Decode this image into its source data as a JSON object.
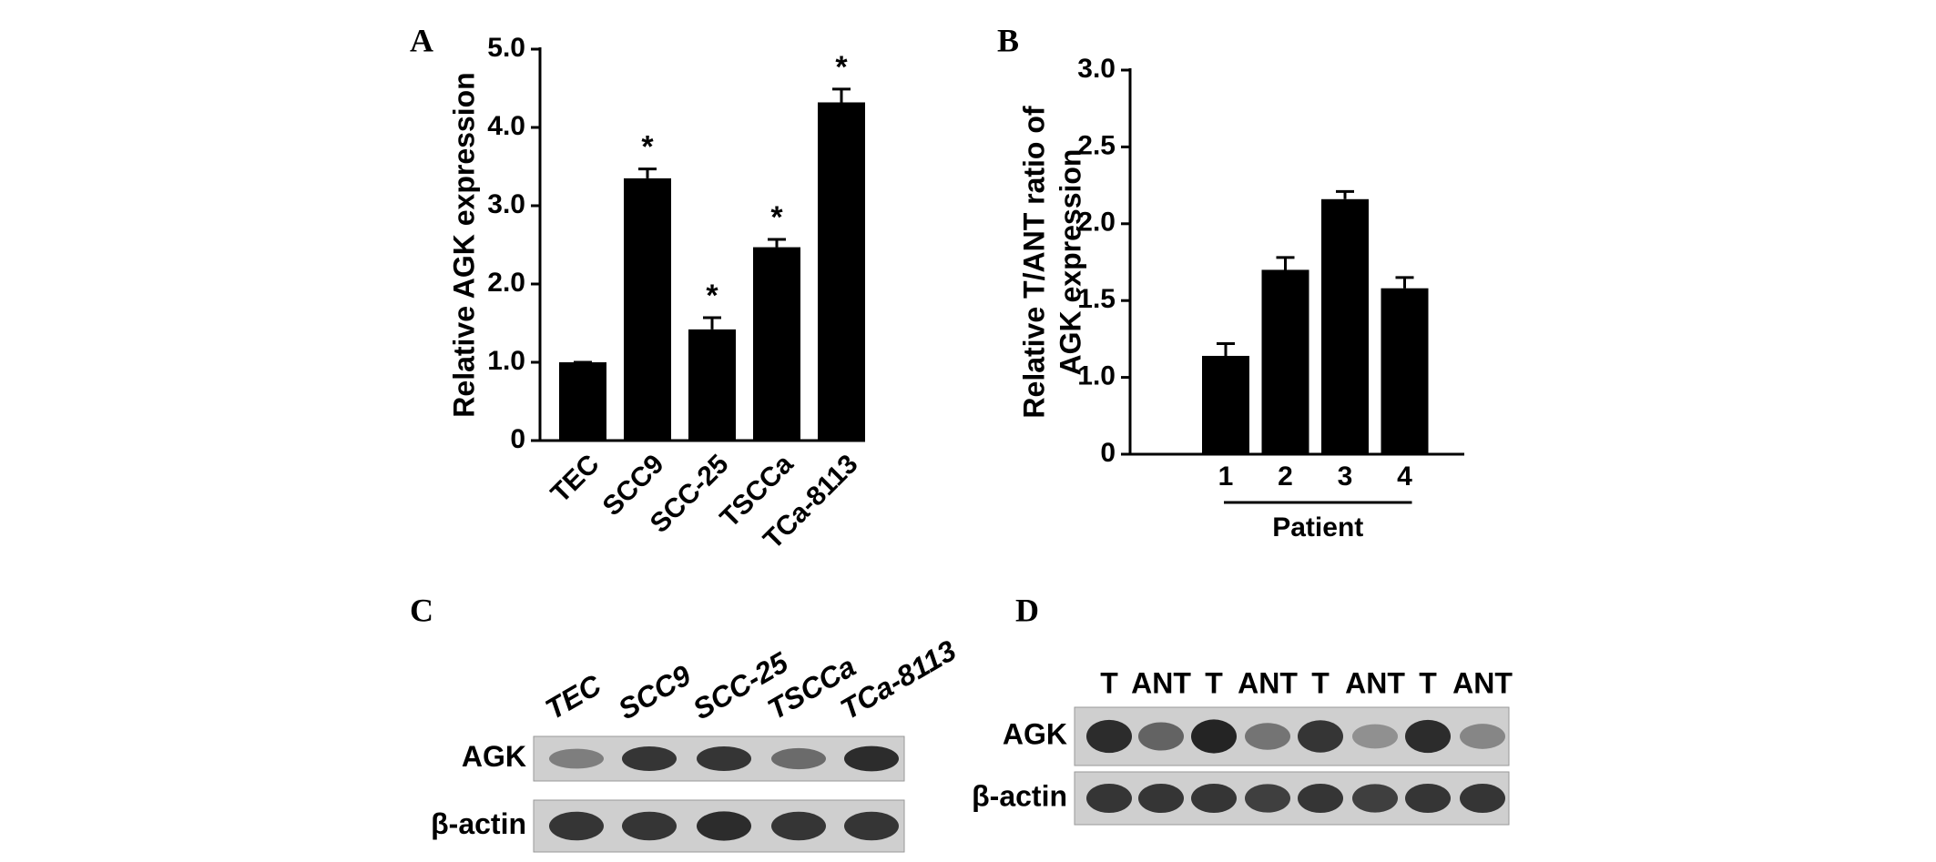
{
  "chart_data": [
    {
      "type": "bar",
      "panel": "A",
      "ylabel": [
        "Relative AGK expression"
      ],
      "categories": [
        "TEC",
        "SCC9",
        "SCC-25",
        "TSCCa",
        "TCa-8113"
      ],
      "values": [
        1.0,
        3.35,
        1.42,
        2.47,
        4.32
      ],
      "errors": [
        0,
        0.12,
        0.15,
        0.1,
        0.17
      ],
      "annotations": [
        null,
        "*",
        "*",
        "*",
        "*"
      ],
      "color": "#000000",
      "ylim": [
        0,
        5
      ],
      "yticks": [
        0,
        {
          "value": 1,
          "label": "1.0"
        },
        {
          "value": 2,
          "label": "2.0"
        },
        {
          "value": 3,
          "label": "3.0"
        },
        {
          "value": 4,
          "label": "4.0"
        },
        {
          "value": 5,
          "label": "5.0"
        }
      ]
    },
    {
      "type": "bar",
      "panel": "B",
      "ylabel": [
        "Relative T/ANT ratio of",
        "AGK expression"
      ],
      "xlabel": "Patient",
      "categories": [
        "1",
        "2",
        "3",
        "4"
      ],
      "values": [
        1.14,
        1.7,
        2.16,
        1.58
      ],
      "errors": [
        0.08,
        0.08,
        0.05,
        0.07
      ],
      "color": "#000000",
      "ylim": [
        0.5,
        3
      ],
      "yticks": [
        {
          "value": 0.5,
          "label": "0"
        },
        {
          "value": 1,
          "label": "1.0"
        },
        1.5,
        {
          "value": 2,
          "label": "2.0"
        },
        2.5,
        {
          "value": 3,
          "label": "3.0"
        }
      ]
    }
  ],
  "blots": [
    {
      "panel": "C",
      "lanes": [
        "TEC",
        "SCC9",
        "SCC-25",
        "TSCCa",
        "TCa-8113"
      ],
      "rows": [
        "AGK",
        "β-actin"
      ]
    },
    {
      "panel": "D",
      "lanes": [
        "T",
        "ANT",
        "T",
        "ANT",
        "T",
        "ANT",
        "T",
        "ANT"
      ],
      "rows": [
        "AGK",
        "β-actin"
      ]
    }
  ]
}
